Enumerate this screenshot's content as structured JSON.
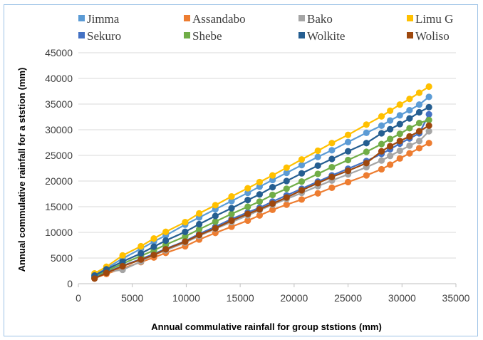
{
  "chart_data": {
    "type": "line",
    "title": "",
    "xlabel": "Annual commulative rainfall for group ststions (mm)",
    "ylabel": "Annual commulative rainfall for a ststion (mm)",
    "xlim": [
      0,
      35000
    ],
    "ylim": [
      0,
      45000
    ],
    "xticks": [
      "0",
      "5000",
      "10000",
      "15000",
      "20000",
      "25000",
      "30000",
      "35000"
    ],
    "yticks": [
      "0",
      "5000",
      "10000",
      "15000",
      "20000",
      "25000",
      "30000",
      "35000",
      "40000",
      "45000"
    ],
    "grid": "horizontal",
    "legend_position": "top",
    "x": [
      1500,
      2600,
      4100,
      5800,
      7000,
      8100,
      9900,
      11200,
      12700,
      14200,
      15700,
      16800,
      18000,
      19300,
      20700,
      22200,
      23500,
      25000,
      26700,
      28100,
      28900,
      29800,
      30700,
      31600,
      32500
    ],
    "series": [
      {
        "name": "Jimma",
        "color": "#5b9bd5",
        "values": [
          1800,
          3000,
          4900,
          6800,
          8200,
          9400,
          11500,
          12900,
          14500,
          16100,
          17700,
          18900,
          20200,
          21600,
          23100,
          24700,
          26000,
          27600,
          29400,
          30800,
          31800,
          32800,
          33800,
          34900,
          36400
        ]
      },
      {
        "name": "Assandabo",
        "color": "#ed7d31",
        "values": [
          1100,
          1900,
          3000,
          4200,
          5100,
          6000,
          7300,
          8600,
          9900,
          11100,
          12300,
          13300,
          14400,
          15400,
          16400,
          17600,
          18700,
          19800,
          21100,
          22300,
          23200,
          24400,
          25400,
          26400,
          27400
        ]
      },
      {
        "name": "Bako",
        "color": "#a5a5a5",
        "values": [
          1300,
          2300,
          2700,
          4300,
          5600,
          6500,
          8000,
          9300,
          10700,
          12000,
          13300,
          14300,
          15400,
          16500,
          17700,
          19000,
          20100,
          21300,
          22700,
          24000,
          24900,
          25900,
          26900,
          27800,
          29700
        ]
      },
      {
        "name": "Limu G",
        "color": "#ffc000",
        "values": [
          2000,
          3300,
          5500,
          7300,
          8800,
          10100,
          12000,
          13700,
          15300,
          17000,
          18600,
          19800,
          21100,
          22600,
          24200,
          25900,
          27400,
          29000,
          31000,
          32600,
          33700,
          34900,
          36000,
          37200,
          38400
        ]
      },
      {
        "name": "Sekuro",
        "color": "#4472c4",
        "values": [
          1200,
          2200,
          3500,
          4800,
          5800,
          6800,
          8300,
          9700,
          11100,
          12600,
          13900,
          14800,
          16000,
          17200,
          18500,
          19900,
          21100,
          22400,
          23900,
          25300,
          26200,
          27300,
          28300,
          29300,
          33000
        ]
      },
      {
        "name": "Shebe",
        "color": "#70ad47",
        "values": [
          1400,
          2500,
          3900,
          5400,
          6500,
          7600,
          9200,
          10600,
          12100,
          13600,
          15000,
          16000,
          17300,
          18500,
          19900,
          21400,
          22700,
          24100,
          25700,
          27200,
          28200,
          29200,
          30300,
          31300,
          31900
        ]
      },
      {
        "name": "Wolkite",
        "color": "#255e91",
        "values": [
          1600,
          2800,
          4300,
          5900,
          7200,
          8400,
          10100,
          11600,
          13200,
          14700,
          16300,
          17400,
          18800,
          20000,
          21500,
          23000,
          24300,
          25800,
          27400,
          29300,
          30100,
          31100,
          32200,
          33400,
          34400
        ]
      },
      {
        "name": "Woliso",
        "color": "#9e480e",
        "values": [
          1000,
          2100,
          3400,
          4700,
          5600,
          6700,
          8200,
          9500,
          10800,
          12300,
          13600,
          14500,
          15600,
          16800,
          18200,
          19600,
          20800,
          22000,
          23500,
          25800,
          26800,
          27800,
          28700,
          29700,
          30800
        ]
      }
    ]
  }
}
